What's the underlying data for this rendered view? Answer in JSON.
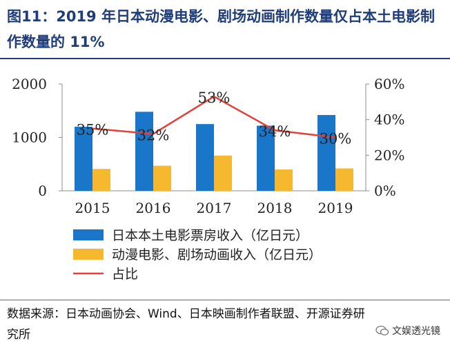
{
  "title": "图11：2019 年日本动漫电影、剧场动画制作数量仅占本土电影制作数量的 11%",
  "source": "数据来源：日本动画协会、Wind、日本映画制作者联盟、开源证券研究所",
  "watermark": "文娱透光镜",
  "chart_data": {
    "type": "bar",
    "categories": [
      "2015",
      "2016",
      "2017",
      "2018",
      "2019"
    ],
    "series": [
      {
        "name": "日本本土电影票房收入（亿日元）",
        "type": "bar",
        "axis": "left",
        "color": "#1976c8",
        "values": [
          1200,
          1480,
          1250,
          1220,
          1420
        ]
      },
      {
        "name": "动漫电影、剧场动画收入（亿日元）",
        "type": "bar",
        "axis": "left",
        "color": "#f5b82e",
        "values": [
          410,
          470,
          660,
          400,
          420
        ]
      },
      {
        "name": "占比",
        "type": "line",
        "axis": "right",
        "color": "#e2403a",
        "values": [
          35,
          32,
          53,
          34,
          30
        ],
        "labels": [
          "35%",
          "32%",
          "53%",
          "34%",
          "30%"
        ]
      }
    ],
    "left_axis": {
      "min": 0,
      "max": 2000,
      "ticks": [
        0,
        1000,
        2000
      ],
      "tick_labels": [
        "0",
        "1000",
        "2000"
      ]
    },
    "right_axis": {
      "min": 0,
      "max": 60,
      "ticks": [
        0,
        20,
        40,
        60
      ],
      "tick_labels": [
        "0%",
        "20%",
        "40%",
        "60%"
      ]
    },
    "legend_position": "bottom"
  }
}
